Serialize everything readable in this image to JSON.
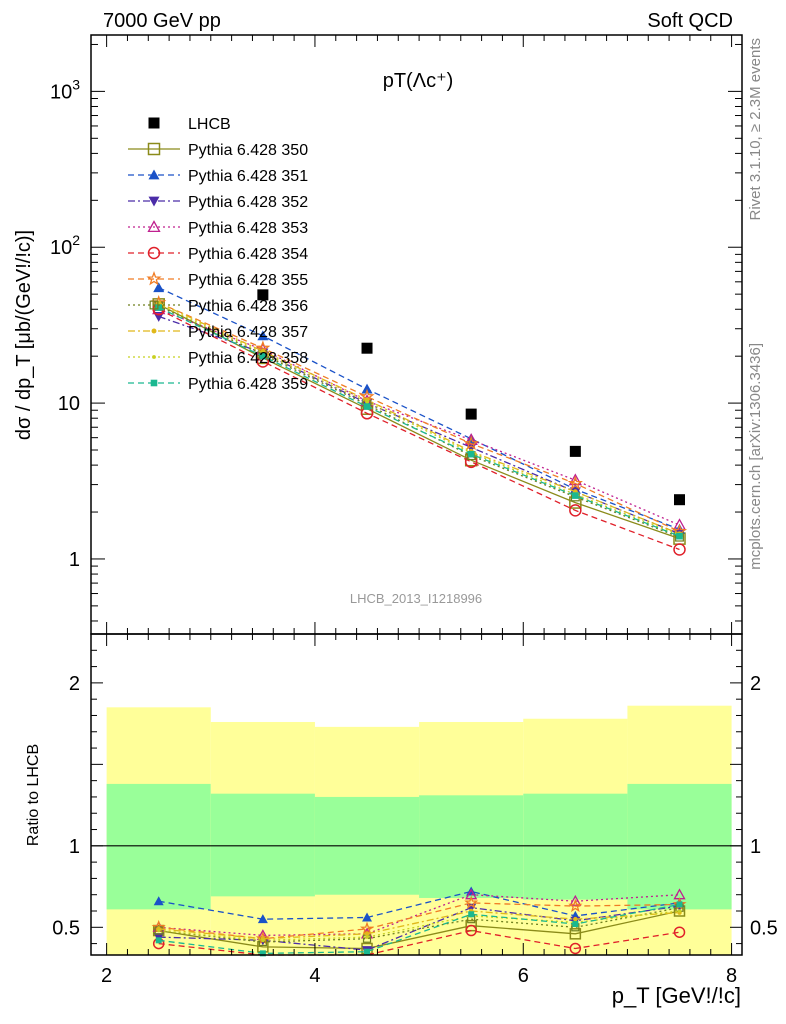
{
  "header": {
    "left": "7000 GeV pp",
    "right": "Soft QCD"
  },
  "side_text": {
    "top": "Rivet 3.1.10, ≥ 2.3M events",
    "bottom": "mcplots.cern.ch [arXiv:1306.3436]"
  },
  "watermark": "LHCB_2013_I1218996",
  "chart_data": [
    {
      "type": "scatter",
      "title": "pT(Λc⁺)",
      "ylabel": "dσ / dp_T [μb/(GeV!/!c)]",
      "xlabel": "",
      "yscale": "log",
      "xlim": [
        1.85,
        8.1
      ],
      "ylim": [
        0.33,
        2300
      ],
      "xticks": [
        "2",
        "4",
        "6",
        "8"
      ],
      "yticks": [
        "1",
        "10",
        "10^2",
        "10^3"
      ],
      "legend_position": "top-left",
      "x": [
        2.5,
        3.5,
        4.5,
        5.5,
        6.5,
        7.5
      ],
      "series": [
        {
          "name": "LHCB",
          "color": "#000000",
          "marker": "square-filled",
          "line": "none",
          "values": [
            null,
            49.5,
            22.5,
            8.5,
            4.9,
            2.4
          ]
        },
        {
          "name": "Pythia 6.428 350",
          "color": "#8b8b1a",
          "marker": "square-open",
          "line": "solid",
          "values": [
            43,
            19.5,
            9.2,
            4.3,
            2.3,
            1.35
          ]
        },
        {
          "name": "Pythia 6.428 351",
          "color": "#1a52c8",
          "marker": "triangle-up-filled",
          "line": "dashed",
          "values": [
            55,
            27,
            12.3,
            5.9,
            2.8,
            1.55
          ]
        },
        {
          "name": "Pythia 6.428 352",
          "color": "#4b2ca8",
          "marker": "triangle-down-filled",
          "line": "dashdot",
          "values": [
            36,
            21,
            10.0,
            5.2,
            2.7,
            1.45
          ]
        },
        {
          "name": "Pythia 6.428 353",
          "color": "#c0208f",
          "marker": "triangle-up-open",
          "line": "dotted",
          "values": [
            40,
            22,
            10.3,
            5.8,
            3.2,
            1.65
          ]
        },
        {
          "name": "Pythia 6.428 354",
          "color": "#e0202a",
          "marker": "circle-open",
          "line": "dashed",
          "values": [
            40,
            18.5,
            8.6,
            4.2,
            2.05,
            1.15
          ]
        },
        {
          "name": "Pythia 6.428 355",
          "color": "#f07c24",
          "marker": "star-open",
          "line": "dashed",
          "values": [
            44,
            22.5,
            11.0,
            5.5,
            3.05,
            1.5
          ]
        },
        {
          "name": "Pythia 6.428 356",
          "color": "#6f7f1f",
          "marker": "square-open-small",
          "line": "dotted",
          "values": [
            42,
            20.5,
            9.8,
            4.6,
            2.5,
            1.38
          ]
        },
        {
          "name": "Pythia 6.428 357",
          "color": "#e0b81a",
          "marker": "dot",
          "line": "dashdot",
          "values": [
            44,
            21.5,
            10.5,
            4.9,
            2.7,
            1.45
          ]
        },
        {
          "name": "Pythia 6.428 358",
          "color": "#c8d020",
          "marker": "dot-small",
          "line": "dotted",
          "values": [
            43,
            21,
            10.2,
            4.8,
            2.6,
            1.42
          ]
        },
        {
          "name": "Pythia 6.428 359",
          "color": "#1ab890",
          "marker": "square-filled-small",
          "line": "dashed",
          "values": [
            41,
            20,
            9.5,
            4.7,
            2.55,
            1.4
          ]
        }
      ]
    },
    {
      "type": "line",
      "ylabel": "Ratio to LHCB",
      "xlabel": "p_T [GeV!/!c]",
      "xlim": [
        1.85,
        8.1
      ],
      "ylim": [
        0.33,
        2.3
      ],
      "xticks": [
        "2",
        "4",
        "6",
        "8"
      ],
      "yticks": [
        "0.5",
        "1",
        "2"
      ],
      "bins": [
        [
          2,
          3
        ],
        [
          3,
          4
        ],
        [
          4,
          5
        ],
        [
          5,
          6
        ],
        [
          6,
          7
        ],
        [
          7,
          8
        ]
      ],
      "band_outer": {
        "color": "#ffff99",
        "low": [
          0.33,
          0.33,
          0.33,
          0.33,
          0.33,
          0.33
        ],
        "high": [
          1.85,
          1.76,
          1.73,
          1.76,
          1.78,
          1.86
        ]
      },
      "band_inner": {
        "color": "#99ff99",
        "low": [
          0.61,
          0.69,
          0.7,
          0.68,
          0.67,
          0.61
        ],
        "high": [
          1.38,
          1.32,
          1.3,
          1.31,
          1.32,
          1.38
        ]
      },
      "x": [
        2.5,
        3.5,
        4.5,
        5.5,
        6.5,
        7.5
      ],
      "series": [
        {
          "name": "Pythia 6.428 350",
          "values": [
            0.48,
            0.38,
            0.37,
            0.51,
            0.46,
            0.6
          ]
        },
        {
          "name": "Pythia 6.428 351",
          "values": [
            0.66,
            0.55,
            0.56,
            0.72,
            0.57,
            0.65
          ]
        },
        {
          "name": "Pythia 6.428 352",
          "values": [
            0.44,
            0.42,
            0.36,
            0.62,
            0.54,
            0.63
          ]
        },
        {
          "name": "Pythia 6.428 353",
          "values": [
            0.5,
            0.45,
            0.46,
            0.7,
            0.66,
            0.7
          ]
        },
        {
          "name": "Pythia 6.428 354",
          "values": [
            0.4,
            0.33,
            0.32,
            0.48,
            0.37,
            0.47
          ]
        },
        {
          "name": "Pythia 6.428 355",
          "values": [
            0.5,
            0.43,
            0.49,
            0.65,
            0.63,
            0.64
          ]
        },
        {
          "name": "Pythia 6.428 356",
          "values": [
            0.48,
            0.41,
            0.43,
            0.55,
            0.5,
            0.62
          ]
        },
        {
          "name": "Pythia 6.428 357",
          "values": [
            0.49,
            0.43,
            0.46,
            0.6,
            0.55,
            0.59
          ]
        },
        {
          "name": "Pythia 6.428 358",
          "values": [
            0.48,
            0.42,
            0.44,
            0.57,
            0.53,
            0.6
          ]
        },
        {
          "name": "Pythia 6.428 359",
          "values": [
            0.42,
            0.34,
            0.35,
            0.58,
            0.52,
            0.64
          ]
        }
      ]
    }
  ]
}
